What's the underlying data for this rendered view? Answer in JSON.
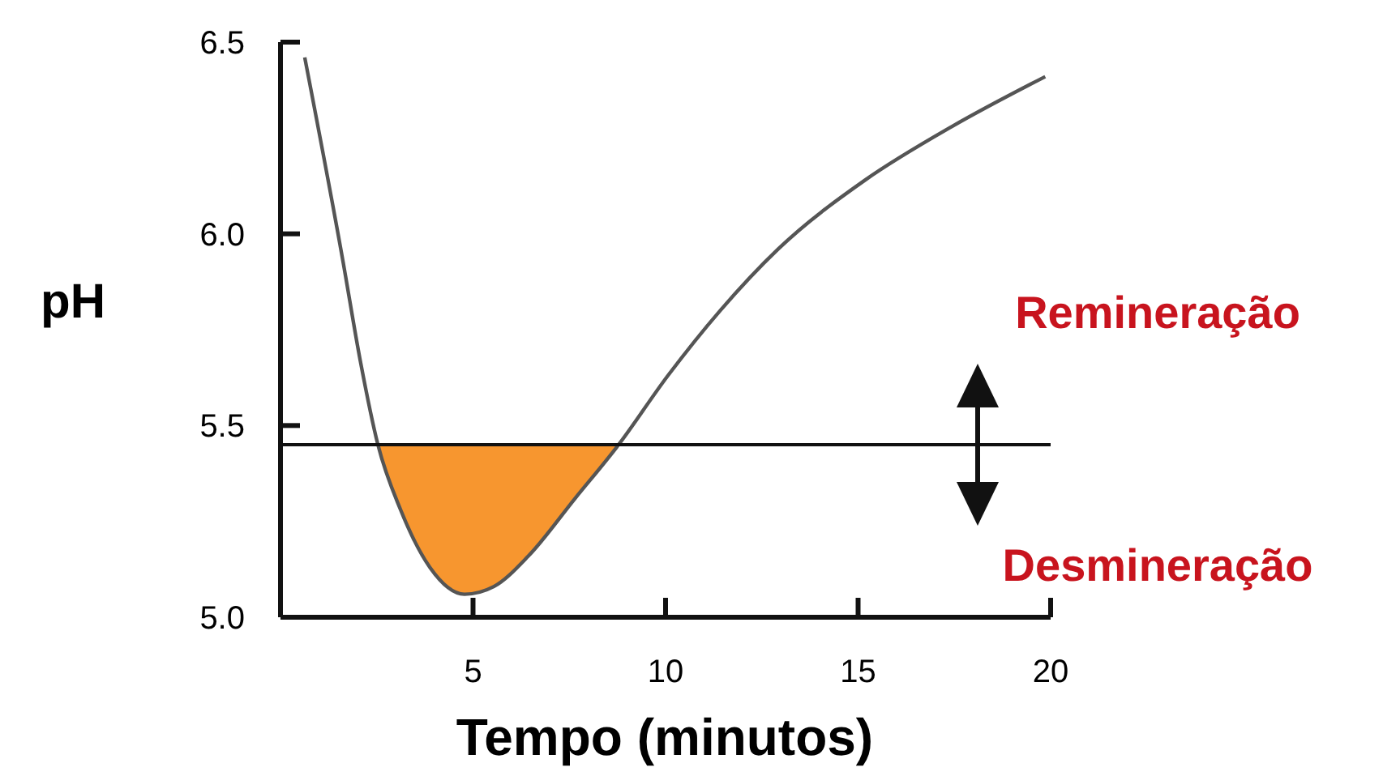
{
  "chart_data": {
    "type": "line",
    "xlabel": "Tempo (minutos)",
    "ylabel": "pH",
    "xlim": [
      0,
      20
    ],
    "xticks": [
      5,
      10,
      15,
      20
    ],
    "ylim": [
      5.0,
      6.5
    ],
    "yticks": [
      {
        "value": 5.0,
        "label": "5.0"
      },
      {
        "value": 5.5,
        "label": "5.5"
      },
      {
        "value": 6.0,
        "label": "6.0"
      },
      {
        "value": 6.5,
        "label": "6.5"
      }
    ],
    "series": [
      {
        "type": "area",
        "color": "#f7962f",
        "x": [
          2.53,
          3.12,
          3.88,
          4.78,
          5.54,
          6.44,
          7.65,
          8.78
        ],
        "values": [
          5.45,
          5.28,
          5.13,
          5.06,
          5.08,
          5.16,
          5.31,
          5.45
        ]
      },
      {
        "color": "#555555",
        "x": [
          0.63,
          1.62,
          2.07,
          2.53,
          3.12,
          3.88,
          4.78,
          5.54,
          6.44,
          7.65,
          8.78,
          10.06,
          11.42,
          12.92,
          15.18,
          17.44,
          19.86
        ],
        "values": [
          6.46,
          5.93,
          5.67,
          5.45,
          5.28,
          5.13,
          5.06,
          5.08,
          5.16,
          5.31,
          5.45,
          5.63,
          5.8,
          5.96,
          6.14,
          6.28,
          6.41
        ]
      }
    ],
    "ref_lines": [
      {
        "axis": "y",
        "value": 5.45,
        "color": "#111111"
      }
    ],
    "annotations": [
      "Remineração",
      "Desmineração"
    ],
    "grid": false,
    "marker": "none",
    "line_style": "solid"
  }
}
